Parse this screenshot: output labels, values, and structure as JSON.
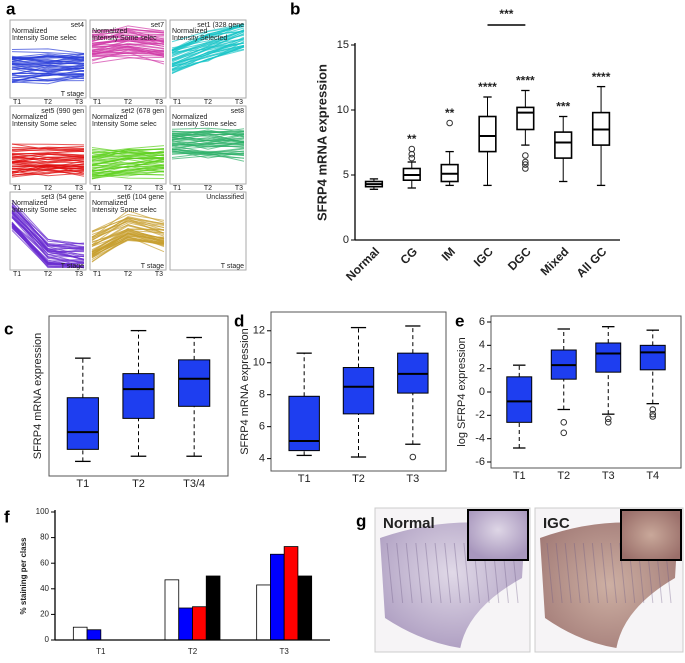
{
  "panel_a": {
    "letter": "a",
    "cells": [
      {
        "title": "set4",
        "color": "#2b3fd8",
        "legend": [
          "Normalized",
          "Intensity Some selec"
        ],
        "xlabels": [
          "T1",
          "T2",
          "T3"
        ],
        "footer": "T stage"
      },
      {
        "title": "set7",
        "color": "#d23ca8",
        "legend": [
          "Normalized",
          "Intensity Some selec"
        ],
        "xlabels": [
          "T1",
          "T2",
          "T3"
        ]
      },
      {
        "title": "set1 (328 gene",
        "color": "#19c4c8",
        "legend": [
          "Normalized",
          "Intensity Selected"
        ],
        "xlabels": [
          "T1",
          "T2",
          "T3"
        ]
      },
      {
        "title": "set5 (990 gen",
        "color": "#e01010",
        "legend": [
          "Normalized",
          "Intensity Some selec"
        ],
        "xlabels": [
          "T1",
          "T2",
          "T3"
        ]
      },
      {
        "title": "set2 (678 gen",
        "color": "#5cd01c",
        "legend": [
          "Normalized",
          "Intensity Some selec"
        ],
        "xlabels": [
          "T1",
          "T2",
          "T3"
        ]
      },
      {
        "title": "set8",
        "color": "#2fb06a",
        "legend": [
          "Normalized",
          "Intensity Some selec"
        ],
        "xlabels": [
          "T1",
          "T2",
          "T3"
        ]
      },
      {
        "title": "set3 (54 gene",
        "color": "#6a2cd0",
        "legend": [
          "Normalized",
          "Intensity Some selec"
        ],
        "xlabels": [
          "T1",
          "T2",
          "T3"
        ],
        "footer": "T stage"
      },
      {
        "title": "set6 (104 gene",
        "color": "#c8a030",
        "legend": [
          "Normalized",
          "Intensity Some selec"
        ],
        "xlabels": [
          "T1",
          "T2",
          "T3"
        ],
        "footer": "T stage"
      },
      {
        "title": "Unclassified",
        "footer": "T stage"
      }
    ]
  },
  "chart_data": [
    {
      "type": "box",
      "label": "b",
      "ylabel": "SFRP4 mRNA expression",
      "color": "#ffffff",
      "rotate_labels": true,
      "categories": [
        "Normal",
        "CG",
        "IM",
        "IGC",
        "DGC",
        "Mixed",
        "All GC"
      ],
      "min": [
        3.9,
        4.0,
        4.2,
        4.2,
        7.3,
        4.5,
        4.2
      ],
      "q1": [
        4.1,
        4.6,
        4.5,
        6.8,
        8.5,
        6.3,
        7.3
      ],
      "median": [
        4.3,
        5.0,
        5.1,
        8.0,
        9.8,
        7.5,
        8.5
      ],
      "q3": [
        4.5,
        5.5,
        5.8,
        9.5,
        10.2,
        8.3,
        9.8
      ],
      "max": [
        4.7,
        6.0,
        6.8,
        11.0,
        11.5,
        9.5,
        11.8
      ],
      "outliers": [
        [],
        [
          6.3,
          6.6,
          7.0
        ],
        [
          9.0
        ],
        [],
        [
          5.5,
          5.8,
          6.0,
          6.5
        ],
        [],
        []
      ],
      "annotations": [
        null,
        "**",
        "**",
        "****",
        "****",
        "***",
        "****"
      ],
      "bracket": {
        "label": "***",
        "span": [
          "IGC",
          "DGC"
        ]
      },
      "ylim": [
        0,
        15
      ],
      "yticks": [
        0,
        5,
        10,
        15
      ]
    },
    {
      "type": "box",
      "label": "c",
      "ylabel": "SFRP4 mRNA expression",
      "color": "#1e3ef0",
      "frame": true,
      "whisker_dash": true,
      "categories": [
        "T1",
        "T2",
        "T3/4"
      ],
      "min": [
        3.9,
        4.2,
        4.2
      ],
      "q1": [
        4.6,
        6.4,
        7.1
      ],
      "median": [
        5.6,
        8.1,
        8.7
      ],
      "q3": [
        7.6,
        9.0,
        9.8
      ],
      "max": [
        9.9,
        11.5,
        11.1
      ],
      "outliers": [
        [],
        [],
        []
      ],
      "ylim": [
        3.4,
        12
      ],
      "yticks": []
    },
    {
      "type": "box",
      "label": "d",
      "ylabel": "SFRP4 mRNA expression",
      "color": "#1e3ef0",
      "frame": true,
      "whisker_dash": true,
      "categories": [
        "T1",
        "T2",
        "T3"
      ],
      "min": [
        4.2,
        4.1,
        4.9
      ],
      "q1": [
        4.5,
        6.8,
        8.1
      ],
      "median": [
        5.1,
        8.5,
        9.3
      ],
      "q3": [
        7.9,
        9.7,
        10.6
      ],
      "max": [
        10.6,
        12.2,
        12.3
      ],
      "outliers": [
        [],
        [],
        [
          4.1
        ]
      ],
      "ylim": [
        3.6,
        12.8
      ],
      "yticks": [
        4,
        6,
        8,
        10,
        12
      ]
    },
    {
      "type": "box",
      "label": "e",
      "ylabel": "log SFRP4 expression",
      "color": "#1e3ef0",
      "frame": true,
      "whisker_dash": true,
      "categories": [
        "T1",
        "T2",
        "T3",
        "T4"
      ],
      "min": [
        -4.8,
        -1.5,
        -1.9,
        -1.0
      ],
      "q1": [
        -2.6,
        1.1,
        1.7,
        1.9
      ],
      "median": [
        -0.8,
        2.3,
        3.3,
        3.4
      ],
      "q3": [
        1.3,
        3.6,
        4.2,
        4.0
      ],
      "max": [
        2.3,
        5.4,
        5.6,
        5.3
      ],
      "outliers": [
        [],
        [
          -2.6,
          -3.5
        ],
        [
          -2.3,
          -2.6
        ],
        [
          -1.5,
          -1.9,
          -2.1
        ]
      ],
      "ylim": [
        -6,
        6
      ],
      "yticks": [
        -6,
        -4,
        -2,
        0,
        2,
        4,
        6
      ]
    },
    {
      "type": "bar",
      "label": "f",
      "ylabel": "% staining per class",
      "categories": [
        "T1",
        "T2",
        "T3"
      ],
      "series": [
        {
          "color": "#ffffff",
          "values": [
            10,
            47,
            43
          ]
        },
        {
          "color": "#0000ff",
          "values": [
            8,
            25,
            67
          ]
        },
        {
          "color": "#ff0000",
          "values": [
            0,
            26,
            73
          ]
        },
        {
          "color": "#000000",
          "values": [
            0,
            50,
            50
          ]
        }
      ],
      "ylim": [
        0,
        100
      ],
      "yticks": [
        0,
        20,
        40,
        60,
        80,
        100
      ]
    }
  ],
  "panel_g": {
    "letter": "g",
    "images": [
      "Normal",
      "IGC"
    ]
  }
}
